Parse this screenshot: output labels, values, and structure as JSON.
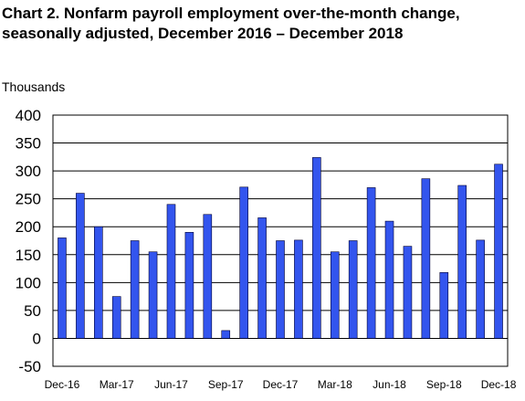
{
  "title": {
    "line1": "Chart 2. Nonfarm payroll employment over-the-month change,",
    "line2": "seasonally adjusted, December 2016 – December 2018"
  },
  "y_unit_label": "Thousands",
  "colors": {
    "bar_fill": "#3355ee",
    "bar_stroke": "#000033",
    "frame": "#000000",
    "gridline": "#000000",
    "background": "#ffffff"
  },
  "chart_data": {
    "type": "bar",
    "categories": [
      "Dec-16",
      "Jan-17",
      "Feb-17",
      "Mar-17",
      "Apr-17",
      "May-17",
      "Jun-17",
      "Jul-17",
      "Aug-17",
      "Sep-17",
      "Oct-17",
      "Nov-17",
      "Dec-17",
      "Jan-18",
      "Feb-18",
      "Mar-18",
      "Apr-18",
      "May-18",
      "Jun-18",
      "Jul-18",
      "Aug-18",
      "Sep-18",
      "Oct-18",
      "Nov-18",
      "Dec-18"
    ],
    "values": [
      180,
      260,
      200,
      75,
      175,
      155,
      240,
      190,
      222,
      14,
      271,
      216,
      175,
      176,
      324,
      155,
      175,
      270,
      210,
      165,
      286,
      118,
      274,
      176,
      312
    ],
    "x_tick_labels": [
      "Dec-16",
      "Mar-17",
      "Jun-17",
      "Sep-17",
      "Dec-17",
      "Mar-18",
      "Jun-18",
      "Sep-18",
      "Dec-18"
    ],
    "y_ticks": [
      -50,
      0,
      50,
      100,
      150,
      200,
      250,
      300,
      350,
      400
    ],
    "ylim": [
      -50,
      400
    ],
    "title": "Chart 2. Nonfarm payroll employment over-the-month change, seasonally adjusted, December 2016 – December 2018",
    "xlabel": "",
    "ylabel": "Thousands",
    "grid": "horizontal",
    "legend": "none"
  }
}
